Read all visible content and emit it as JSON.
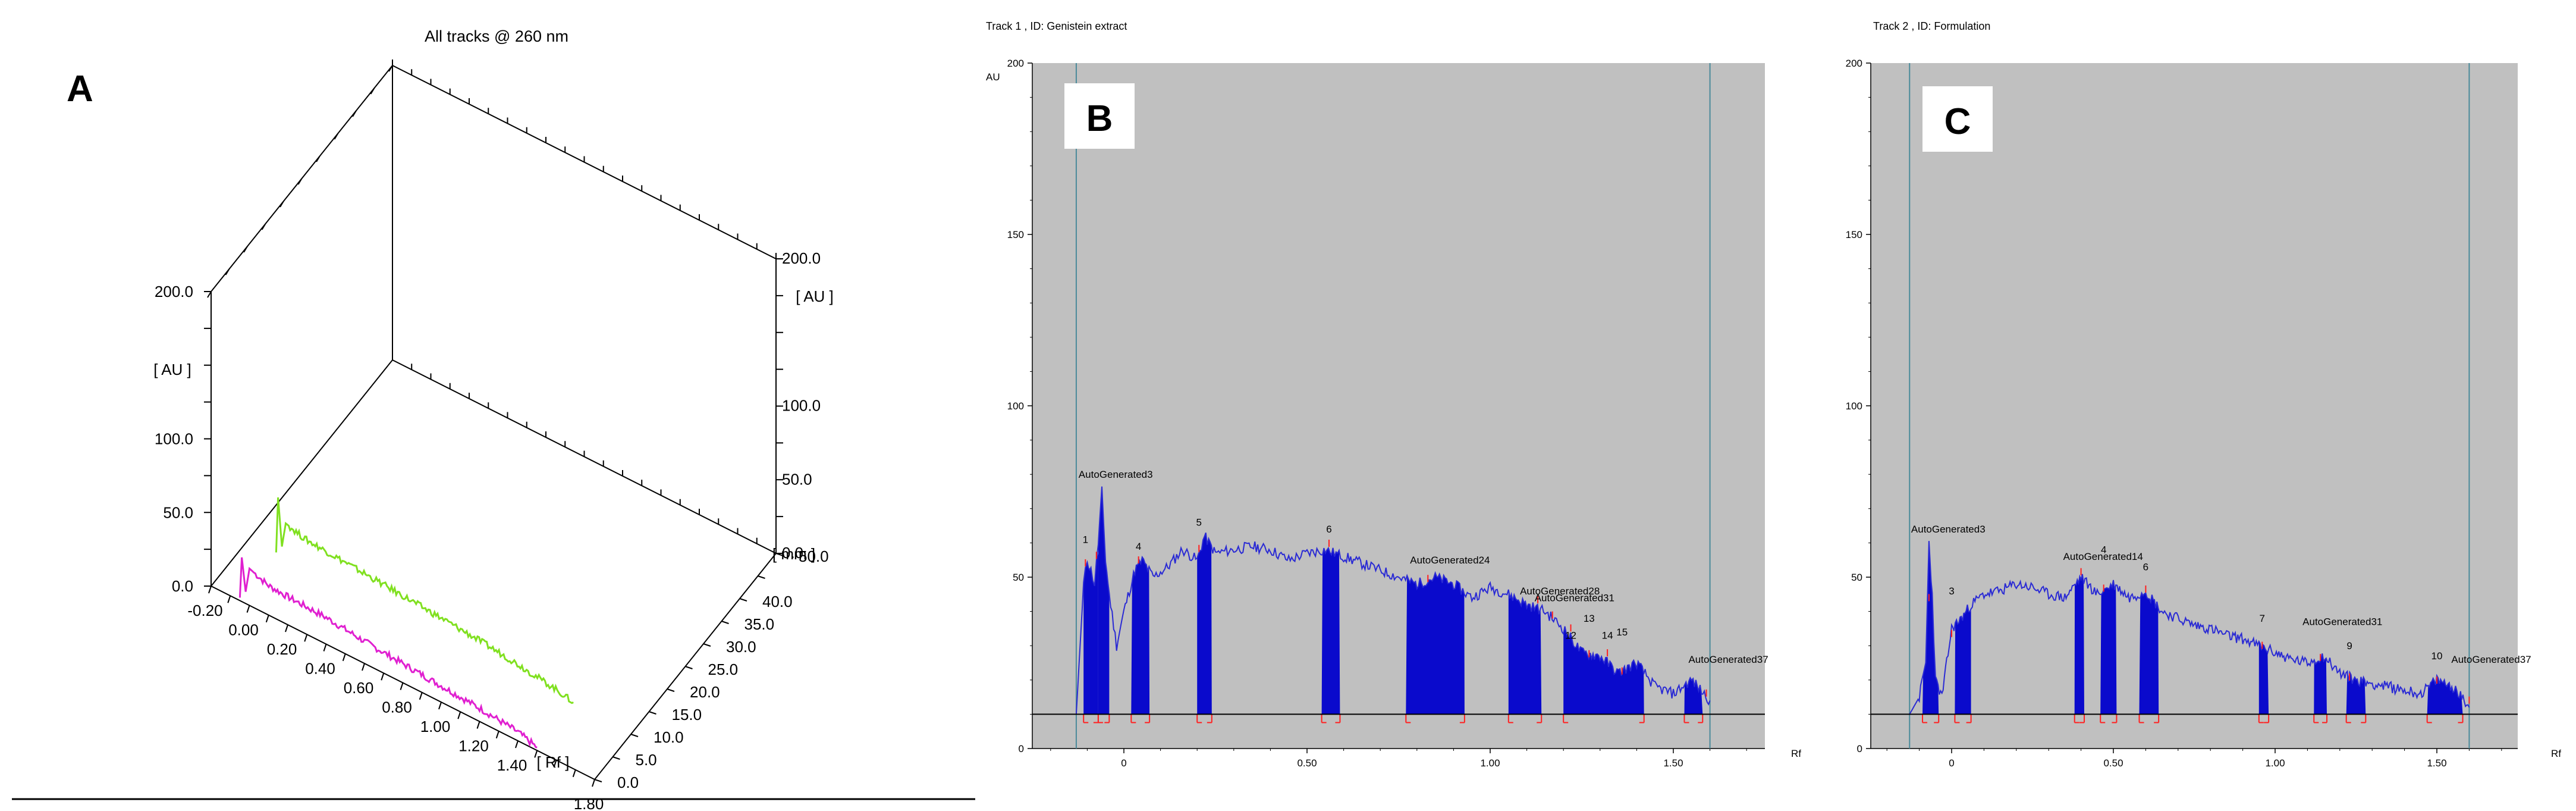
{
  "colors": {
    "plot_bg": "#c0c0c0",
    "trace": "#2a2ad4",
    "peak_fill": "#0a0acc",
    "marker": "#ff2020",
    "baseline": "#000000",
    "guide": "#4a8a9a",
    "track_green": "#80e020",
    "track_magenta": "#e020d0"
  },
  "panel_a": {
    "letter": "A",
    "title": "All tracks @ 260 nm",
    "y_left_label": "[ AU ]",
    "y_right_label": "[ AU ]",
    "rf_label": "[ Rf ]",
    "mm_label": "[ mm ]",
    "y_left_ticks": [
      "0.0",
      "50.0",
      "100.0",
      "200.0"
    ],
    "y_right_ticks": [
      "0.0",
      "50.0",
      "100.0",
      "200.0"
    ],
    "rf_ticks": [
      "-0.20",
      "0.00",
      "0.20",
      "0.40",
      "0.60",
      "0.80",
      "1.00",
      "1.20",
      "1.40",
      "1.80"
    ],
    "mm_ticks": [
      "0.0",
      "5.0",
      "10.0",
      "15.0",
      "20.0",
      "25.0",
      "30.0",
      "35.0",
      "40.0",
      "50.0"
    ]
  },
  "panel_b": {
    "letter": "B",
    "header": "Track  1 , ID: Genistein extract",
    "y_unit": "AU",
    "x_unit": "Rf",
    "y_ticks": [
      "0",
      "50",
      "100",
      "150",
      "200"
    ],
    "x_ticks": [
      "0",
      "0.50",
      "1.00",
      "1.50"
    ],
    "peak_labels": [
      {
        "text": "1",
        "rf": -0.105,
        "au": 60
      },
      {
        "text": "AutoGenerated3",
        "rf": -0.075,
        "au": 79
      },
      {
        "text": "4",
        "rf": 0.04,
        "au": 58
      },
      {
        "text": "5",
        "rf": 0.205,
        "au": 65
      },
      {
        "text": "6",
        "rf": 0.56,
        "au": 63
      },
      {
        "text": "AutoGenerated24",
        "rf": 0.83,
        "au": 54
      },
      {
        "text": "AutoGenerated28",
        "rf": 1.13,
        "au": 45
      },
      {
        "text": "AutoGenerated31",
        "rf": 1.17,
        "au": 43
      },
      {
        "text": "12",
        "rf": 1.22,
        "au": 32
      },
      {
        "text": "13",
        "rf": 1.27,
        "au": 37
      },
      {
        "text": "14",
        "rf": 1.32,
        "au": 32
      },
      {
        "text": "15",
        "rf": 1.36,
        "au": 33
      },
      {
        "text": "AutoGenerated37",
        "rf": 1.59,
        "au": 25
      }
    ]
  },
  "panel_c": {
    "letter": "C",
    "header": "Track  2 , ID: Formulation",
    "y_unit": "AU",
    "x_unit": "Rf",
    "y_ticks": [
      "0",
      "50",
      "100",
      "150",
      "200"
    ],
    "x_ticks": [
      "0",
      "0.50",
      "1.00",
      "1.50"
    ],
    "peak_labels": [
      {
        "text": "AutoGenerated3",
        "rf": -0.07,
        "au": 63
      },
      {
        "text": "3",
        "rf": 0.0,
        "au": 45
      },
      {
        "text": "AutoGenerated14",
        "rf": 0.4,
        "au": 55
      },
      {
        "text": "4",
        "rf": 0.47,
        "au": 57
      },
      {
        "text": "6",
        "rf": 0.6,
        "au": 52
      },
      {
        "text": "7",
        "rf": 0.96,
        "au": 37
      },
      {
        "text": "AutoGenerated31",
        "rf": 1.14,
        "au": 36
      },
      {
        "text": "9",
        "rf": 1.23,
        "au": 29
      },
      {
        "text": "10",
        "rf": 1.5,
        "au": 26
      },
      {
        "text": "AutoGenerated37",
        "rf": 1.6,
        "au": 25
      }
    ]
  },
  "chart_data": [
    {
      "type": "line",
      "title": "All tracks @ 260 nm",
      "xlabel": "[ Rf ]",
      "ylabel": "[ AU ]",
      "zlabel": "[ mm ]",
      "xlim": [
        -0.2,
        1.8
      ],
      "ylim": [
        0,
        200
      ],
      "series": [
        {
          "color": "#e020d0",
          "track_mm": 0,
          "x": [
            -0.05,
            -0.04,
            -0.02,
            0.0,
            0.1,
            0.2,
            0.4,
            0.6,
            0.8,
            1.0,
            1.2,
            1.4,
            1.5
          ],
          "y": [
            2,
            30,
            8,
            25,
            20,
            19,
            18,
            15,
            13,
            11,
            9,
            6,
            2
          ]
        },
        {
          "color": "#80e020",
          "track_mm": 10,
          "x": [
            -0.05,
            -0.04,
            -0.02,
            0.0,
            0.1,
            0.2,
            0.4,
            0.6,
            0.8,
            1.0,
            1.2,
            1.4,
            1.5
          ],
          "y": [
            2,
            40,
            8,
            25,
            21,
            20,
            18,
            16,
            14,
            12,
            9,
            5,
            2
          ]
        }
      ]
    },
    {
      "type": "area",
      "title": "Track  1 , ID: Genistein extract",
      "xlabel": "Rf",
      "ylabel": "AU",
      "xlim": [
        -0.25,
        1.75
      ],
      "ylim": [
        0,
        200
      ],
      "baseline": 10,
      "x": [
        -0.13,
        -0.11,
        -0.1,
        -0.09,
        -0.08,
        -0.07,
        -0.06,
        -0.05,
        -0.04,
        -0.02,
        0.0,
        0.03,
        0.05,
        0.08,
        0.12,
        0.16,
        0.2,
        0.22,
        0.25,
        0.3,
        0.35,
        0.4,
        0.45,
        0.5,
        0.55,
        0.6,
        0.65,
        0.7,
        0.75,
        0.8,
        0.85,
        0.9,
        0.95,
        1.0,
        1.05,
        1.1,
        1.15,
        1.2,
        1.25,
        1.3,
        1.35,
        1.4,
        1.45,
        1.5,
        1.55,
        1.6
      ],
      "y": [
        10,
        48,
        55,
        52,
        48,
        60,
        75,
        55,
        45,
        30,
        40,
        52,
        55,
        50,
        53,
        58,
        55,
        62,
        57,
        58,
        59,
        58,
        55,
        57,
        58,
        56,
        54,
        52,
        50,
        48,
        50,
        48,
        44,
        47,
        45,
        42,
        40,
        35,
        28,
        27,
        22,
        25,
        18,
        16,
        20,
        14
      ],
      "peaks": [
        {
          "start": -0.11,
          "end": -0.07,
          "fill_top": 55
        },
        {
          "start": -0.07,
          "end": -0.04,
          "fill_top": 75
        },
        {
          "start": 0.02,
          "end": 0.07,
          "fill_top": 55
        },
        {
          "start": 0.2,
          "end": 0.24,
          "fill_top": 62
        },
        {
          "start": 0.54,
          "end": 0.59,
          "fill_top": 58
        },
        {
          "start": 0.77,
          "end": 0.93,
          "fill_top": 50
        },
        {
          "start": 1.05,
          "end": 1.14,
          "fill_top": 45
        },
        {
          "start": 1.2,
          "end": 1.42,
          "fill_top": 35
        },
        {
          "start": 1.53,
          "end": 1.58,
          "fill_top": 22
        }
      ]
    },
    {
      "type": "area",
      "title": "Track  2 , ID: Formulation",
      "xlabel": "Rf",
      "ylabel": "AU",
      "xlim": [
        -0.25,
        1.75
      ],
      "ylim": [
        0,
        200
      ],
      "baseline": 10,
      "x": [
        -0.13,
        -0.1,
        -0.08,
        -0.07,
        -0.06,
        -0.05,
        -0.03,
        0.0,
        0.03,
        0.06,
        0.1,
        0.15,
        0.2,
        0.25,
        0.3,
        0.35,
        0.4,
        0.45,
        0.5,
        0.55,
        0.6,
        0.65,
        0.7,
        0.75,
        0.8,
        0.85,
        0.9,
        0.95,
        1.0,
        1.05,
        1.1,
        1.15,
        1.2,
        1.25,
        1.3,
        1.35,
        1.4,
        1.45,
        1.5,
        1.55,
        1.6
      ],
      "y": [
        10,
        15,
        25,
        60,
        45,
        20,
        15,
        35,
        38,
        42,
        45,
        46,
        48,
        47,
        45,
        44,
        50,
        45,
        48,
        44,
        46,
        40,
        38,
        36,
        35,
        33,
        32,
        30,
        28,
        26,
        25,
        27,
        22,
        20,
        19,
        18,
        17,
        16,
        20,
        18,
        12
      ],
      "peaks": [
        {
          "start": -0.09,
          "end": -0.04,
          "fill_top": 60
        },
        {
          "start": 0.01,
          "end": 0.06,
          "fill_top": 40
        },
        {
          "start": 0.38,
          "end": 0.41,
          "fill_top": 50
        },
        {
          "start": 0.46,
          "end": 0.51,
          "fill_top": 50
        },
        {
          "start": 0.58,
          "end": 0.64,
          "fill_top": 46
        },
        {
          "start": 0.95,
          "end": 0.98,
          "fill_top": 36
        },
        {
          "start": 1.12,
          "end": 1.16,
          "fill_top": 32
        },
        {
          "start": 1.22,
          "end": 1.28,
          "fill_top": 24
        },
        {
          "start": 1.47,
          "end": 1.58,
          "fill_top": 20
        }
      ]
    }
  ]
}
